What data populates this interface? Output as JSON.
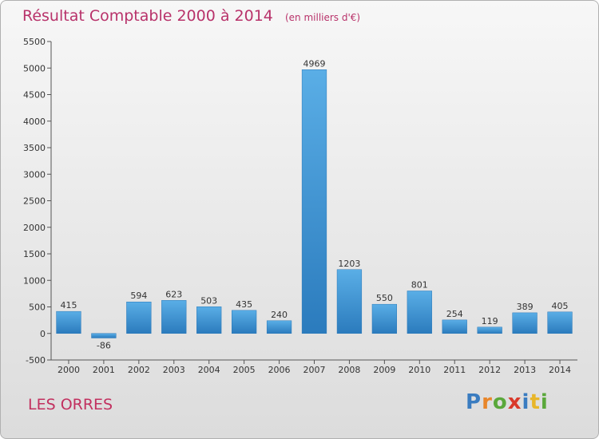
{
  "title": "Résultat Comptable 2000 à 2014",
  "subtitle": "(en milliers d'€)",
  "commune": "LES ORRES",
  "brand": {
    "letters": [
      "P",
      "r",
      "o",
      "x",
      "i",
      "t",
      "i"
    ],
    "colors": [
      "#3a7cc0",
      "#e8862a",
      "#5aa83b",
      "#d93a2b",
      "#3a7cc0",
      "#e8b62a",
      "#5aa83b"
    ]
  },
  "chart_data": {
    "type": "bar",
    "title": "Résultat Comptable 2000 à 2014",
    "subtitle": "(en milliers d'€)",
    "xlabel": "",
    "ylabel": "",
    "ylim": [
      -500,
      5500
    ],
    "yticks": [
      -500,
      0,
      500,
      1000,
      1500,
      2000,
      2500,
      3000,
      3500,
      4000,
      4500,
      5000,
      5500
    ],
    "grid": false,
    "categories": [
      "2000",
      "2001",
      "2002",
      "2003",
      "2004",
      "2005",
      "2006",
      "2007",
      "2008",
      "2009",
      "2010",
      "2011",
      "2012",
      "2013",
      "2014"
    ],
    "values": [
      415,
      -86,
      594,
      623,
      503,
      435,
      240,
      4969,
      1203,
      550,
      801,
      254,
      119,
      389,
      405
    ],
    "bar_color_light": "#5aaee6",
    "bar_color_dark": "#2b7bbd",
    "axis_color": "#555555"
  }
}
